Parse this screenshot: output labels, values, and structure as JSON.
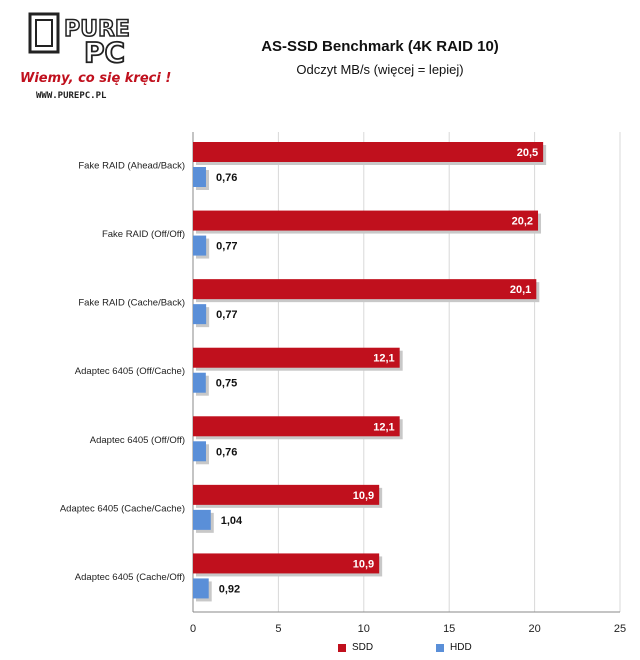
{
  "logo": {
    "brand_top": "PURE",
    "brand_bottom": "PC",
    "slogan": "Wiemy, co się kręci !",
    "url": "WWW.PUREPC.PL"
  },
  "chart_data": {
    "type": "bar",
    "orientation": "horizontal",
    "title": "AS-SSD Benchmark (4K RAID 10)",
    "subtitle": "Odczyt MB/s (więcej = lepiej)",
    "categories": [
      "Fake RAID (Ahead/Back)",
      "Fake RAID (Off/Off)",
      "Fake RAID (Cache/Back)",
      "Adaptec 6405 (Off/Cache)",
      "Adaptec 6405 (Off/Off)",
      "Adaptec 6405 (Cache/Cache)",
      "Adaptec 6405 (Cache/Off)"
    ],
    "series": [
      {
        "name": "SDD",
        "color": "#c0101d",
        "values": [
          20.5,
          20.2,
          20.1,
          12.1,
          12.1,
          10.9,
          10.9
        ],
        "labels": [
          "20,5",
          "20,2",
          "20,1",
          "12,1",
          "12,1",
          "10,9",
          "10,9"
        ]
      },
      {
        "name": "HDD",
        "color": "#5a8fd8",
        "values": [
          0.76,
          0.77,
          0.77,
          0.75,
          0.76,
          1.04,
          0.92
        ],
        "labels": [
          "0,76",
          "0,77",
          "0,77",
          "0,75",
          "0,76",
          "1,04",
          "0,92"
        ]
      }
    ],
    "xlim": [
      0,
      25
    ],
    "xticks": [
      0,
      5,
      10,
      15,
      20,
      25
    ],
    "grid": true,
    "legend_position": "bottom"
  }
}
